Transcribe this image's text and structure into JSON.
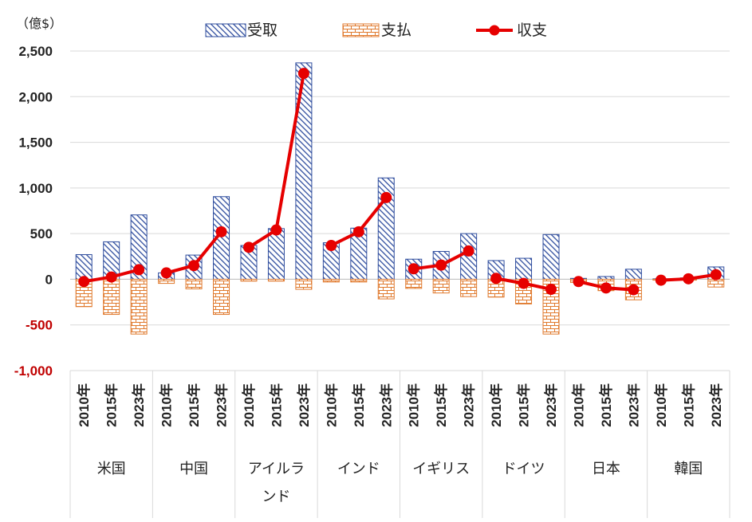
{
  "chart_data": {
    "type": "bar",
    "unit_label": "（億$）",
    "ylim": [
      -1000,
      2500
    ],
    "yticks": [
      2500,
      2000,
      1500,
      1000,
      500,
      0,
      -500,
      -1000
    ],
    "ytick_labels": [
      "2,500",
      "2,000",
      "1,500",
      "1,000",
      "500",
      "0",
      "-500",
      "-1,000"
    ],
    "negative_tick_color": "#c00000",
    "grid": true,
    "legend_placement": "top",
    "colors": {
      "receipts": "#2f4d9e",
      "payments": "#e07a2e",
      "balance": "#e60000"
    },
    "year_labels": [
      "2010年",
      "2015年",
      "2023年"
    ],
    "groups": [
      {
        "name": "米国",
        "receipts": [
          270,
          410,
          705
        ],
        "payments": [
          -300,
          -385,
          -600
        ],
        "balance": [
          -25,
          25,
          105
        ]
      },
      {
        "name": "中国",
        "receipts": [
          70,
          265,
          905
        ],
        "payments": [
          -45,
          -105,
          -385
        ],
        "balance": [
          70,
          150,
          520
        ]
      },
      {
        "name": "アイルランド",
        "name_lines": [
          "アイルラ",
          "ンド"
        ],
        "receipts": [
          370,
          555,
          2370
        ],
        "payments": [
          -20,
          -20,
          -110
        ],
        "balance": [
          350,
          540,
          2255
        ]
      },
      {
        "name": "インド",
        "receipts": [
          400,
          560,
          1110
        ],
        "payments": [
          -30,
          -30,
          -215
        ],
        "balance": [
          370,
          520,
          895
        ]
      },
      {
        "name": "イギリス",
        "receipts": [
          220,
          305,
          500
        ],
        "payments": [
          -100,
          -150,
          -190
        ],
        "balance": [
          115,
          155,
          310
        ]
      },
      {
        "name": "ドイツ",
        "receipts": [
          205,
          230,
          490
        ],
        "payments": [
          -195,
          -270,
          -600
        ],
        "balance": [
          10,
          -45,
          -110
        ]
      },
      {
        "name": "日本",
        "receipts": [
          10,
          30,
          110
        ],
        "payments": [
          -35,
          -125,
          -225
        ],
        "balance": [
          -25,
          -95,
          -115
        ]
      },
      {
        "name": "韓国",
        "receipts": [
          5,
          15,
          135
        ],
        "payments": [
          -10,
          -10,
          -85
        ],
        "balance": [
          -10,
          5,
          50
        ]
      }
    ],
    "series": [
      {
        "name": "受取",
        "kind": "bar",
        "key": "receipts"
      },
      {
        "name": "支払",
        "kind": "bar",
        "key": "payments"
      },
      {
        "name": "収支",
        "kind": "line",
        "key": "balance"
      }
    ]
  }
}
